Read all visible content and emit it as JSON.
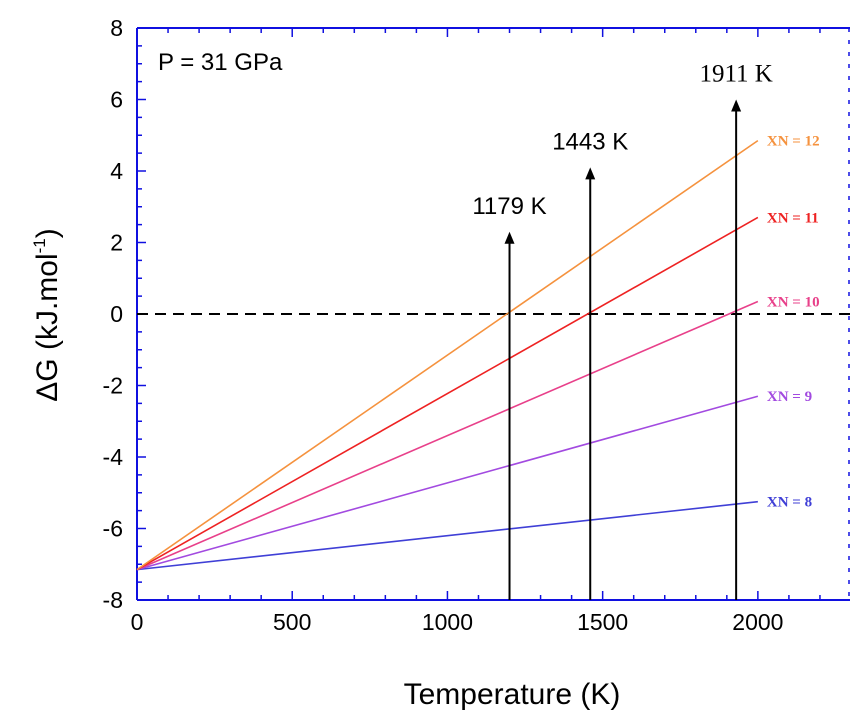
{
  "chart_data": {
    "type": "line",
    "xlabel": "Temperature (K)",
    "ylabel": "ΔG (kJ.mol",
    "ylabel_sup": "-1",
    "ylabel_close": ")",
    "xlim": [
      0,
      2300
    ],
    "ylim": [
      -8,
      8
    ],
    "x_ticks": [
      0,
      500,
      1000,
      1500,
      2000
    ],
    "x_tick_labels": [
      "0",
      "500",
      "1000",
      "1500",
      "2000"
    ],
    "y_ticks": [
      -8,
      -6,
      -4,
      -2,
      0,
      2,
      4,
      6,
      8
    ],
    "y_tick_labels": [
      "-8",
      "-6",
      "-4",
      "-2",
      "0",
      "2",
      "4",
      "6",
      "8"
    ],
    "grid": false,
    "pressure_label": "P = 31 GPa",
    "series": [
      {
        "name": "XN = 8",
        "color": "#3f3fd6",
        "x": [
          0,
          2000
        ],
        "y": [
          -7.15,
          -5.25
        ]
      },
      {
        "name": "XN = 9",
        "color": "#a24ae0",
        "x": [
          0,
          2000
        ],
        "y": [
          -7.15,
          -2.3
        ]
      },
      {
        "name": "XN = 10",
        "color": "#e8408a",
        "x": [
          0,
          2000
        ],
        "y": [
          -7.15,
          0.35
        ]
      },
      {
        "name": "XN = 11",
        "color": "#ee2222",
        "x": [
          0,
          2000
        ],
        "y": [
          -7.15,
          2.7
        ]
      },
      {
        "name": "XN = 12",
        "color": "#f5923e",
        "x": [
          0,
          2000
        ],
        "y": [
          -7.15,
          4.85
        ]
      }
    ],
    "zero_line": {
      "y": 0,
      "style": "dashed",
      "color": "#000000"
    },
    "annotations": [
      {
        "label": "1179 K",
        "x": 1200,
        "y_top": 2.3,
        "font": "sans"
      },
      {
        "label": "1443 K",
        "x": 1460,
        "y_top": 4.1,
        "font": "sans"
      },
      {
        "label": "1911 K",
        "x": 1930,
        "y_top": 6.0,
        "font": "serif"
      }
    ]
  }
}
